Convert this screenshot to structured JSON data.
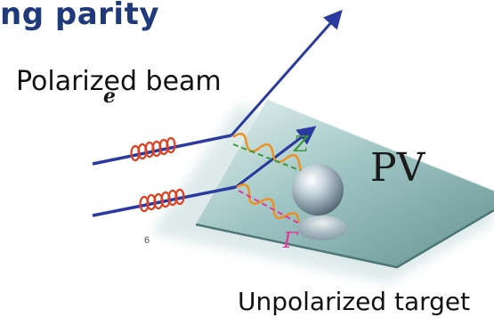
{
  "title": "ng parity",
  "beam_label": "Polarized beam",
  "target_label": "Unpolarized target",
  "electron_symbol": "e",
  "z_label": "Z",
  "gamma_label": "Γ",
  "plane_label": "PV",
  "small_mark": "6",
  "colors": {
    "title": "#1f3a7a",
    "beam": "#2a3aa0",
    "spring": "#e0401f",
    "wave_orange": "#f0901a",
    "wave_green": "#3a9a3a",
    "wave_magenta": "#e03a9a",
    "plane": "#8fb8b8"
  }
}
